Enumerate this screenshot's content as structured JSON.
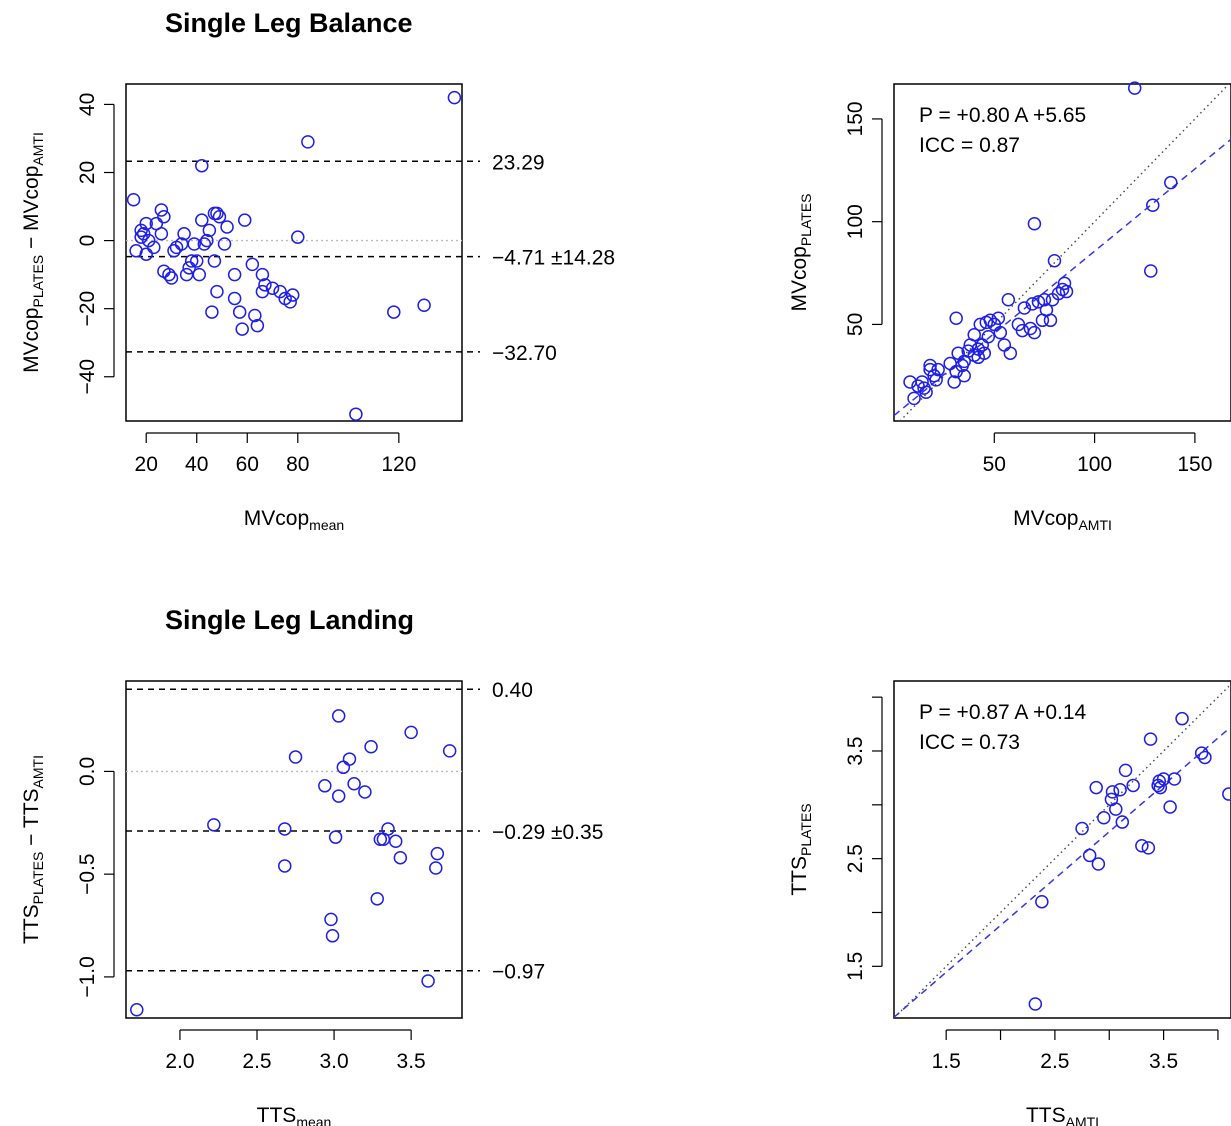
{
  "sections": [
    {
      "title": "Single Leg Balance"
    },
    {
      "title": "Single Leg Landing"
    }
  ],
  "colors": {
    "points": "#1f1fe6",
    "fit_line": "#3535e6",
    "identity_line": "#777777",
    "frame": "#000000"
  },
  "chart_data": [
    {
      "type": "scatter",
      "variant": "bland-altman",
      "xlabel": {
        "main": "MVcop",
        "sub": "mean"
      },
      "ylabel": {
        "main": "MVcop",
        "sub": "PLATES",
        "main2": " − MVcop",
        "sub2": "AMTI"
      },
      "xlim": [
        12,
        145
      ],
      "ylim": [
        -53,
        46
      ],
      "xticks": [
        20,
        40,
        60,
        80,
        120
      ],
      "xticklabels": [
        "20",
        "40",
        "60",
        "80",
        "120"
      ],
      "yticks": [
        -40,
        -20,
        0,
        20,
        40
      ],
      "yticklabels": [
        "−40",
        "−20",
        "0",
        "20",
        "40"
      ],
      "hlines": [
        {
          "y": 23.29,
          "label": "23.29",
          "style": "dashed"
        },
        {
          "y": -4.71,
          "label": "−4.71 ±14.28",
          "style": "dashed"
        },
        {
          "y": -32.7,
          "label": "−32.70",
          "style": "dashed"
        },
        {
          "y": 0,
          "label": "",
          "style": "dotted"
        }
      ],
      "points": [
        [
          15,
          12
        ],
        [
          16,
          -3
        ],
        [
          18,
          1
        ],
        [
          18,
          3
        ],
        [
          19,
          2
        ],
        [
          20,
          5
        ],
        [
          20,
          -4
        ],
        [
          21,
          0
        ],
        [
          23,
          -2
        ],
        [
          24,
          5
        ],
        [
          26,
          2
        ],
        [
          26,
          9
        ],
        [
          27,
          7
        ],
        [
          27,
          -9
        ],
        [
          29,
          -10
        ],
        [
          30,
          -11
        ],
        [
          31,
          -3
        ],
        [
          32,
          -2
        ],
        [
          34,
          -1
        ],
        [
          35,
          2
        ],
        [
          36,
          -10
        ],
        [
          37,
          -8
        ],
        [
          38,
          -6
        ],
        [
          39,
          -1
        ],
        [
          40,
          -6
        ],
        [
          41,
          -10
        ],
        [
          42,
          22
        ],
        [
          42,
          6
        ],
        [
          43,
          -1
        ],
        [
          44,
          0
        ],
        [
          45,
          3
        ],
        [
          46,
          -21
        ],
        [
          47,
          8
        ],
        [
          47,
          -6
        ],
        [
          48,
          8
        ],
        [
          48,
          -15
        ],
        [
          49,
          7
        ],
        [
          51,
          -1
        ],
        [
          52,
          4
        ],
        [
          55,
          -10
        ],
        [
          55,
          -17
        ],
        [
          57,
          -21
        ],
        [
          58,
          -26
        ],
        [
          59,
          6
        ],
        [
          62,
          -7
        ],
        [
          63,
          -22
        ],
        [
          64,
          -25
        ],
        [
          66,
          -10
        ],
        [
          66,
          -15
        ],
        [
          67,
          -13
        ],
        [
          70,
          -14
        ],
        [
          73,
          -15
        ],
        [
          75,
          -17
        ],
        [
          77,
          -18
        ],
        [
          78,
          -16
        ],
        [
          80,
          1
        ],
        [
          84,
          29
        ],
        [
          103,
          -51
        ],
        [
          118,
          -21
        ],
        [
          130,
          -19
        ],
        [
          142,
          42
        ]
      ]
    },
    {
      "type": "scatter",
      "variant": "correlation",
      "xlabel": {
        "main": "MVcop",
        "sub": "AMTI"
      },
      "ylabel": {
        "main": "MVcop",
        "sub": "PLATES"
      },
      "xlim": [
        0,
        168
      ],
      "ylim": [
        3,
        167
      ],
      "xticks": [
        50,
        100,
        150
      ],
      "xticklabels": [
        "50",
        "100",
        "150"
      ],
      "yticks": [
        50,
        100,
        150
      ],
      "yticklabels": [
        "50",
        "100",
        "150"
      ],
      "identity_line": true,
      "fit": {
        "slope": 0.8,
        "intercept": 5.65
      },
      "annotations": [
        "P = +0.80 A +5.65",
        "ICC = 0.87"
      ],
      "points": [
        [
          8,
          22
        ],
        [
          10,
          14
        ],
        [
          12,
          20
        ],
        [
          14,
          22
        ],
        [
          15,
          19
        ],
        [
          16,
          17
        ],
        [
          18,
          28
        ],
        [
          18,
          30
        ],
        [
          20,
          25
        ],
        [
          21,
          23
        ],
        [
          22,
          28
        ],
        [
          28,
          31
        ],
        [
          30,
          22
        ],
        [
          31,
          27
        ],
        [
          32,
          36
        ],
        [
          34,
          30
        ],
        [
          35,
          25
        ],
        [
          35,
          32
        ],
        [
          37,
          37
        ],
        [
          38,
          40
        ],
        [
          40,
          45
        ],
        [
          40,
          35
        ],
        [
          42,
          38
        ],
        [
          42,
          34
        ],
        [
          43,
          50
        ],
        [
          44,
          40
        ],
        [
          45,
          36
        ],
        [
          46,
          51
        ],
        [
          47,
          44
        ],
        [
          48,
          52
        ],
        [
          50,
          50
        ],
        [
          52,
          53
        ],
        [
          53,
          46
        ],
        [
          55,
          40
        ],
        [
          57,
          62
        ],
        [
          58,
          36
        ],
        [
          62,
          50
        ],
        [
          64,
          47
        ],
        [
          65,
          58
        ],
        [
          68,
          48
        ],
        [
          69,
          60
        ],
        [
          70,
          46
        ],
        [
          70,
          99
        ],
        [
          72,
          61
        ],
        [
          74,
          52
        ],
        [
          75,
          62
        ],
        [
          76,
          57
        ],
        [
          78,
          52
        ],
        [
          79,
          62
        ],
        [
          80,
          81
        ],
        [
          82,
          65
        ],
        [
          84,
          67
        ],
        [
          85,
          70
        ],
        [
          86,
          66
        ],
        [
          31,
          53
        ],
        [
          120,
          165
        ],
        [
          128,
          76
        ],
        [
          129,
          108
        ],
        [
          138,
          119
        ]
      ]
    },
    {
      "type": "scatter",
      "variant": "bland-altman",
      "xlabel": {
        "main": "TTS",
        "sub": "mean"
      },
      "ylabel": {
        "main": "TTS",
        "sub": "PLATES",
        "main2": " − TTS",
        "sub2": "AMTI"
      },
      "xlim": [
        1.65,
        3.83
      ],
      "ylim": [
        -1.2,
        0.44
      ],
      "xticks": [
        2.0,
        2.5,
        3.0,
        3.5
      ],
      "xticklabels": [
        "2.0",
        "2.5",
        "3.0",
        "3.5"
      ],
      "yticks": [
        -1.0,
        -0.5,
        0.0
      ],
      "yticklabels": [
        "−1.0",
        "−0.5",
        "0.0"
      ],
      "hlines": [
        {
          "y": 0.4,
          "label": "0.40",
          "style": "dashed"
        },
        {
          "y": -0.29,
          "label": "−0.29 ±0.35",
          "style": "dashed"
        },
        {
          "y": -0.97,
          "label": "−0.97",
          "style": "dashed"
        },
        {
          "y": 0.0,
          "label": "",
          "style": "dotted"
        }
      ],
      "points": [
        [
          1.72,
          -1.16
        ],
        [
          2.22,
          -0.26
        ],
        [
          2.68,
          -0.28
        ],
        [
          2.68,
          -0.46
        ],
        [
          2.75,
          0.07
        ],
        [
          2.94,
          -0.07
        ],
        [
          2.98,
          -0.72
        ],
        [
          2.99,
          -0.8
        ],
        [
          3.01,
          -0.32
        ],
        [
          3.03,
          0.27
        ],
        [
          3.03,
          -0.12
        ],
        [
          3.06,
          0.02
        ],
        [
          3.1,
          0.06
        ],
        [
          3.13,
          -0.06
        ],
        [
          3.2,
          -0.1
        ],
        [
          3.24,
          0.12
        ],
        [
          3.28,
          -0.62
        ],
        [
          3.3,
          -0.33
        ],
        [
          3.32,
          -0.33
        ],
        [
          3.35,
          -0.28
        ],
        [
          3.4,
          -0.34
        ],
        [
          3.43,
          -0.42
        ],
        [
          3.5,
          0.19
        ],
        [
          3.61,
          -1.02
        ],
        [
          3.66,
          -0.47
        ],
        [
          3.67,
          -0.4
        ],
        [
          3.75,
          0.1
        ]
      ]
    },
    {
      "type": "scatter",
      "variant": "correlation",
      "xlabel": {
        "main": "TTS",
        "sub": "AMTI"
      },
      "ylabel": {
        "main": "TTS",
        "sub": "PLATES"
      },
      "xlim": [
        1.02,
        4.12
      ],
      "ylim": [
        1.02,
        4.15
      ],
      "xticks": [
        1.5,
        2.0,
        2.5,
        3.0,
        3.5,
        4.0
      ],
      "xticklabels": [
        "1.5",
        "",
        "2.5",
        "",
        "3.5",
        ""
      ],
      "yticks": [
        1.5,
        2.0,
        2.5,
        3.0,
        3.5,
        4.0
      ],
      "yticklabels": [
        "1.5",
        "",
        "2.5",
        "",
        "3.5",
        ""
      ],
      "identity_line": true,
      "fit": {
        "slope": 0.87,
        "intercept": 0.14
      },
      "annotations": [
        "P = +0.87 A +0.14",
        "ICC = 0.73"
      ],
      "points": [
        [
          2.32,
          1.15
        ],
        [
          2.38,
          2.1
        ],
        [
          2.75,
          2.78
        ],
        [
          2.82,
          2.53
        ],
        [
          2.88,
          3.16
        ],
        [
          2.9,
          2.45
        ],
        [
          2.95,
          2.88
        ],
        [
          3.02,
          3.05
        ],
        [
          3.03,
          3.12
        ],
        [
          3.06,
          2.96
        ],
        [
          3.1,
          3.14
        ],
        [
          3.12,
          2.84
        ],
        [
          3.15,
          3.32
        ],
        [
          3.22,
          3.18
        ],
        [
          3.3,
          2.62
        ],
        [
          3.36,
          2.6
        ],
        [
          3.38,
          3.61
        ],
        [
          3.45,
          3.18
        ],
        [
          3.46,
          3.22
        ],
        [
          3.47,
          3.16
        ],
        [
          3.5,
          3.24
        ],
        [
          3.56,
          2.98
        ],
        [
          3.6,
          3.24
        ],
        [
          3.67,
          3.8
        ],
        [
          3.85,
          3.48
        ],
        [
          3.88,
          3.44
        ],
        [
          4.1,
          3.1
        ]
      ]
    }
  ]
}
